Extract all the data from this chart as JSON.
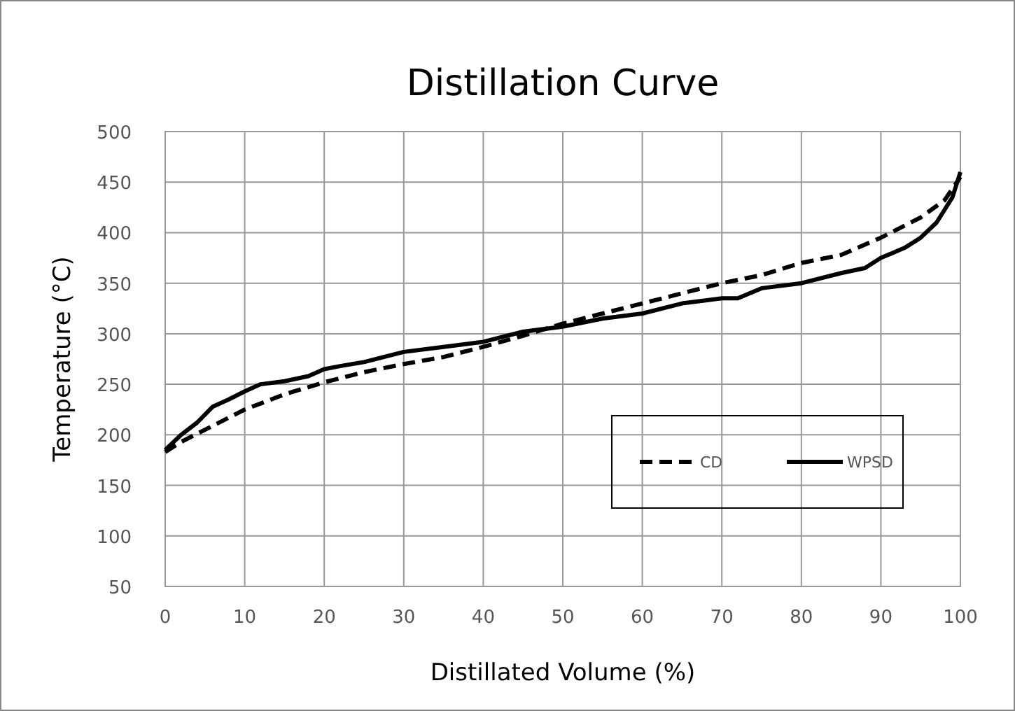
{
  "chart_data": {
    "type": "line",
    "title": "Distillation Curve",
    "xlabel": "Distillated Volume (%)",
    "ylabel": "Temperature (°C)",
    "xlim": [
      0,
      100
    ],
    "xticks": [
      0,
      10,
      20,
      30,
      40,
      50,
      60,
      70,
      80,
      90,
      100
    ],
    "ylim": [
      50,
      500
    ],
    "yticks": [
      50,
      100,
      150,
      200,
      250,
      300,
      350,
      400,
      450,
      500
    ],
    "grid": true,
    "legend": "bottom right",
    "series": [
      {
        "name": "CD",
        "color": "#000000",
        "line_style": "dashed",
        "x": [
          0,
          2,
          5,
          10,
          15,
          20,
          25,
          30,
          35,
          40,
          45,
          50,
          55,
          60,
          65,
          70,
          75,
          80,
          85,
          90,
          95,
          98,
          100
        ],
        "values": [
          183,
          193,
          205,
          225,
          240,
          252,
          262,
          270,
          277,
          287,
          298,
          310,
          320,
          330,
          340,
          350,
          358,
          370,
          378,
          395,
          415,
          432,
          455
        ]
      },
      {
        "name": "WPSD",
        "color": "#000000",
        "line_style": "solid",
        "x": [
          0,
          2,
          4,
          6,
          8,
          10,
          12,
          15,
          18,
          20,
          22,
          25,
          30,
          35,
          40,
          45,
          50,
          55,
          60,
          65,
          70,
          72,
          75,
          80,
          85,
          88,
          90,
          93,
          95,
          97,
          99,
          100
        ],
        "values": [
          185,
          200,
          212,
          228,
          235,
          243,
          250,
          253,
          258,
          265,
          268,
          272,
          282,
          287,
          292,
          302,
          307,
          315,
          320,
          330,
          335,
          335,
          345,
          350,
          360,
          365,
          375,
          385,
          395,
          410,
          435,
          460
        ]
      }
    ]
  }
}
